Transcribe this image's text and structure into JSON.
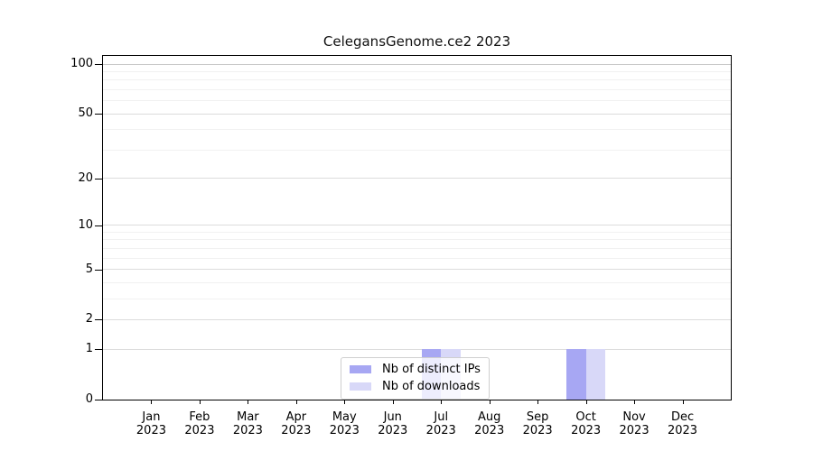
{
  "chart_data": {
    "type": "bar",
    "title": "CelegansGenome.ce2 2023",
    "categories": [
      "Jan 2023",
      "Feb 2023",
      "Mar 2023",
      "Apr 2023",
      "May 2023",
      "Jun 2023",
      "Jul 2023",
      "Aug 2023",
      "Sep 2023",
      "Oct 2023",
      "Nov 2023",
      "Dec 2023"
    ],
    "series": [
      {
        "name": "Nb of distinct IPs",
        "color": "#a7a7f3",
        "values": [
          0,
          0,
          0,
          0,
          0,
          0,
          1,
          0,
          0,
          1,
          0,
          0
        ]
      },
      {
        "name": "Nb of downloads",
        "color": "#d8d8f8",
        "values": [
          0,
          0,
          0,
          0,
          0,
          0,
          1,
          0,
          0,
          1,
          0,
          0
        ]
      }
    ],
    "xlabel": "",
    "ylabel": "",
    "y_scale": "log1p",
    "ylim": [
      0,
      112
    ],
    "y_ticks": [
      0,
      1,
      2,
      5,
      10,
      20,
      50,
      100
    ],
    "y_minor_ticks": [
      3,
      4,
      6,
      7,
      8,
      9,
      30,
      40,
      60,
      70,
      80,
      90
    ],
    "grid": true,
    "legend_position": "lower center",
    "colors": {
      "grid_major": "#dcdcdc",
      "grid_minor": "#f1f1f1",
      "axis": "#000000",
      "bar_distinct_ips": "#a7a7f3",
      "bar_downloads": "#d8d8f8"
    }
  }
}
